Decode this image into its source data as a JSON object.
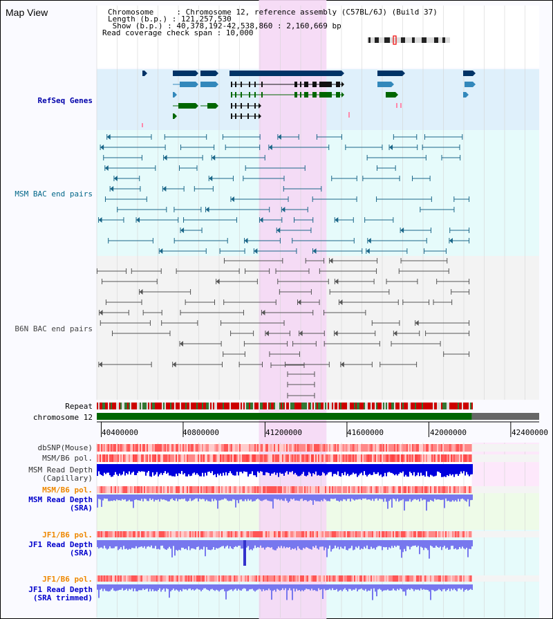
{
  "header": {
    "title": "Map View",
    "info_lines": [
      "Chromosome     : Chromosome 12, reference assembly (C57BL/6J) (Build 37)",
      "Length (b.p.) : 121,257,530",
      " Show (b.p.) : 40,378,192-42,538,860 : 2,160,669 bp",
      "Read coverage check span : 10,000"
    ]
  },
  "tracks": {
    "refseq": {
      "label": "RefSeq Genes",
      "color": "#0000aa"
    },
    "msm_bac": {
      "label": "MSM BAC end pairs",
      "color": "#006688"
    },
    "b6n_bac": {
      "label": "B6N BAC end pairs",
      "color": "#444444"
    },
    "repeat": {
      "label": "Repeat",
      "color": "#000000"
    },
    "chromosome": {
      "label": "chromosome 12",
      "color": "#000000"
    },
    "dbsnp": {
      "label": "dbSNP(Mouse)",
      "color": "#333333"
    },
    "msm_b6_pol": {
      "label": "MSM/B6 pol.",
      "color": "#333333"
    },
    "msm_depth_cap": {
      "label_line1": "MSM Read Depth",
      "label_line2": "(Capillary)",
      "color": "#333333"
    },
    "msm_b6_pol_sra": {
      "label": "MSM/B6 pol.",
      "color": "#ee8800"
    },
    "msm_depth_sra": {
      "label_line1": "MSM Read Depth",
      "label_line2": "(SRA)",
      "color": "#0000cc"
    },
    "jf1_b6_pol": {
      "label": "JF1/B6 pol.",
      "color": "#ee8800"
    },
    "jf1_depth_sra": {
      "label_line1": "JF1 Read Depth",
      "label_line2": "(SRA)",
      "color": "#0000cc"
    },
    "jf1_b6_pol_2": {
      "label": "JF1/B6 pol.",
      "color": "#ee8800"
    },
    "jf1_depth_trim": {
      "label_line1": "JF1 Read Depth",
      "label_line2": "(SRA trimmed)",
      "color": "#0000cc"
    }
  },
  "axis": {
    "ticks": [
      "40400000",
      "40800000",
      "41200000",
      "41600000",
      "42000000",
      "42400000"
    ],
    "tick_values": [
      40400000,
      40800000,
      41200000,
      41600000,
      42000000,
      42400000
    ],
    "view_start": 40378192,
    "view_end": 42538860,
    "data_end": 42210000,
    "highlight_start": 41170000,
    "highlight_end": 41500000
  },
  "colors": {
    "refseq_bg": "#dff0fb",
    "msm_bg": "#e6fbfb",
    "b6n_bg": "#f3f3f3",
    "highlight": "#f5d8f5",
    "gene_dark": "#003366",
    "gene_mid": "#3388bb",
    "gene_green": "#006600",
    "msm_line": "#1a6688",
    "b6n_line": "#555555",
    "chrom_green": "#006600",
    "depth_dark": "#0000dd",
    "depth_light": "#7777ee"
  }
}
